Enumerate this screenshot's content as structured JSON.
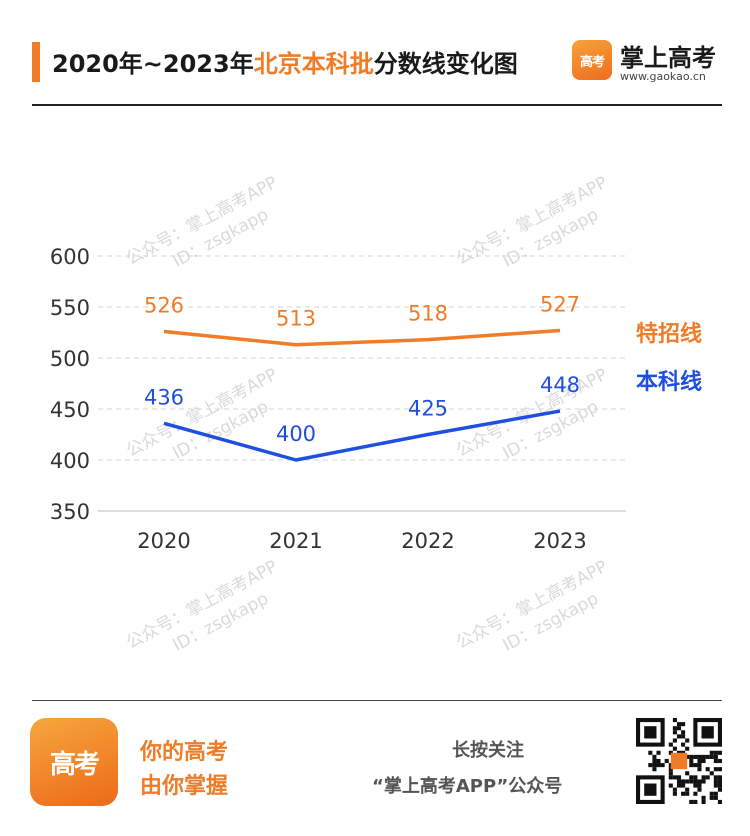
{
  "header": {
    "title_prefix": "2020年~2023年",
    "title_highlight": "北京本科批",
    "title_suffix": "分数线变化图",
    "brand_name": "掌上高考",
    "brand_url": "www.gaokao.cn",
    "logo_text": "高考"
  },
  "legend": {
    "special": "特招线",
    "undergrad": "本科线"
  },
  "watermark": {
    "line1": "公众号：掌上高考APP",
    "line2": "ID：zsgkapp"
  },
  "footer": {
    "logo_text": "高考",
    "slogan_line1": "你的高考",
    "slogan_line2": "由你掌握",
    "follow_line1": "长按关注",
    "follow_line2": "“掌上高考APP”公众号"
  },
  "colors": {
    "accent": "#f07c27",
    "special": "#f07c27",
    "undergrad": "#1f4fe0"
  },
  "chart_data": {
    "type": "line",
    "title": "2020年~2023年北京本科批分数线变化图",
    "categories": [
      "2020",
      "2021",
      "2022",
      "2023"
    ],
    "series": [
      {
        "name": "特招线",
        "values": [
          526,
          513,
          518,
          527
        ]
      },
      {
        "name": "本科线",
        "values": [
          436,
          400,
          425,
          448
        ]
      }
    ],
    "ylim": [
      350,
      600
    ],
    "yticks": [
      350,
      400,
      450,
      500,
      550,
      600
    ],
    "grid": true,
    "legend_position": "right"
  }
}
